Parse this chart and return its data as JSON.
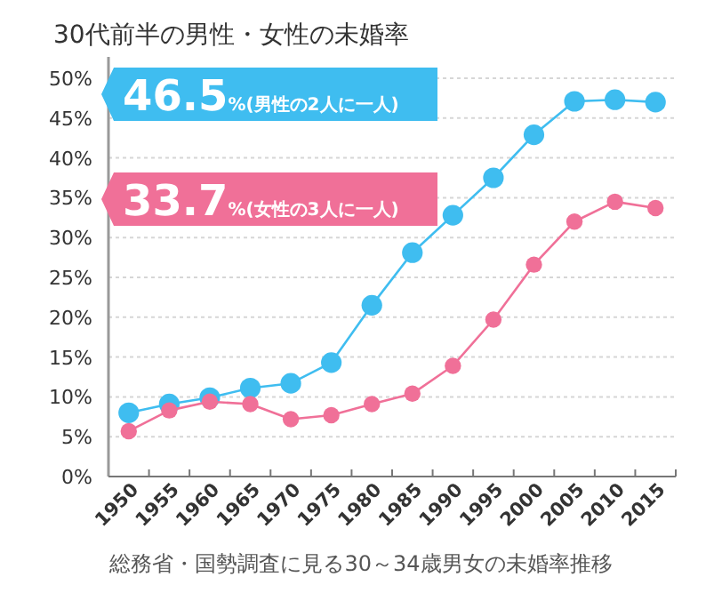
{
  "chart_data": {
    "type": "line",
    "title": "30代前半の男性・女性の未婚率",
    "categories": [
      "1950",
      "1955",
      "1960",
      "1965",
      "1970",
      "1975",
      "1980",
      "1985",
      "1990",
      "1995",
      "2000",
      "2005",
      "2010",
      "2015"
    ],
    "series": [
      {
        "color": "#3fbdf0",
        "values": [
          8.0,
          9.1,
          9.9,
          11.1,
          11.7,
          14.3,
          21.5,
          28.1,
          32.8,
          37.5,
          42.9,
          47.1,
          47.3,
          47.0
        ]
      },
      {
        "color": "#f07098",
        "values": [
          5.7,
          8.3,
          9.4,
          9.1,
          7.2,
          7.7,
          9.1,
          10.4,
          13.9,
          19.7,
          26.6,
          32.0,
          34.5,
          33.7
        ]
      }
    ],
    "ylim": [
      0,
      50
    ],
    "yticks": [
      {
        "value": 0,
        "label": "0%"
      },
      {
        "value": 5,
        "label": "5%"
      },
      {
        "value": 10,
        "label": "10%"
      },
      {
        "value": 15,
        "label": "15%"
      },
      {
        "value": 20,
        "label": "20%"
      },
      {
        "value": 25,
        "label": "25%"
      },
      {
        "value": 30,
        "label": "30%"
      },
      {
        "value": 35,
        "label": "35%"
      },
      {
        "value": 40,
        "label": "40%"
      },
      {
        "value": 45,
        "label": "45%"
      },
      {
        "value": 50,
        "label": "50%"
      }
    ],
    "grid": "y",
    "marker": "circle",
    "line_style": "solid",
    "annotations": [
      "**46.5**%(男性の2人に一人)",
      "**33.7**%(女性の3人に一人)",
      "総務省・国勢調査に見る30～34歳男女の未婚率推移"
    ]
  }
}
